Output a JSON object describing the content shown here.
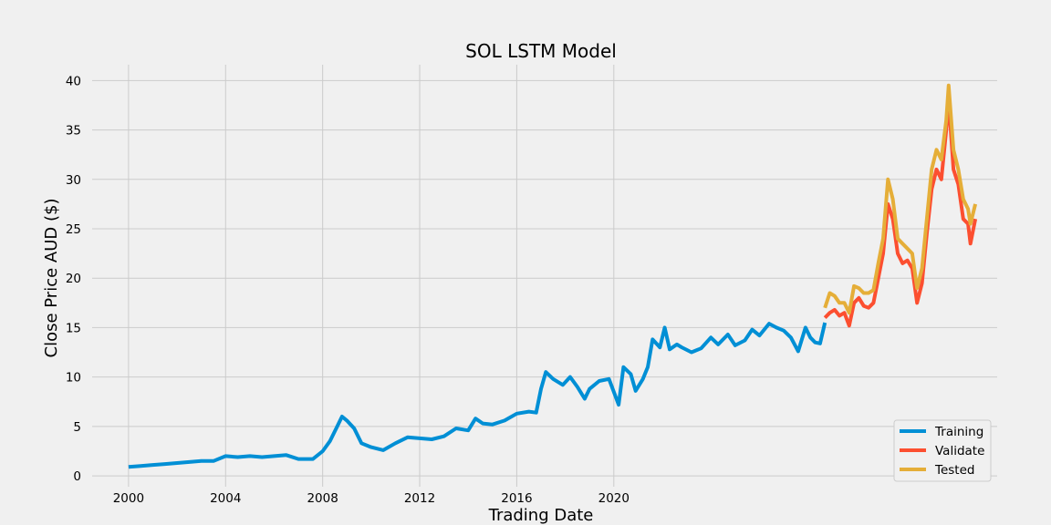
{
  "chart_data": {
    "type": "line",
    "title": "SOL LSTM Model",
    "xlabel": "Trading Date",
    "ylabel": "Close Price AUD ($)",
    "xlim": [
      1998.5,
      2035.8
    ],
    "ylim": [
      -1.1,
      41.6
    ],
    "x_ticks": [
      2000,
      2004,
      2008,
      2012,
      2016,
      2020
    ],
    "y_ticks": [
      0,
      5,
      10,
      15,
      20,
      25,
      30,
      35,
      40
    ],
    "grid": true,
    "legend_position": "bottom-right",
    "colors": {
      "Training": "#008fd5",
      "Validate": "#fc4f30",
      "Tested": "#e5ae38",
      "background": "#f0f0f0",
      "grid": "#cbcbcb"
    },
    "series": [
      {
        "name": "Training",
        "x": [
          2000.0,
          2000.5,
          2001.0,
          2001.5,
          2002.0,
          2002.5,
          2003.0,
          2003.5,
          2004.0,
          2004.5,
          2005.0,
          2005.5,
          2006.0,
          2006.5,
          2007.0,
          2007.3,
          2007.6,
          2008.0,
          2008.3,
          2008.6,
          2008.8,
          2009.0,
          2009.3,
          2009.6,
          2010.0,
          2010.5,
          2011.0,
          2011.5,
          2012.0,
          2012.5,
          2013.0,
          2013.5,
          2014.0,
          2014.3,
          2014.6,
          2015.0,
          2015.5,
          2016.0,
          2016.5,
          2016.8,
          2017.0,
          2017.2,
          2017.5,
          2017.9,
          2018.2,
          2018.5,
          2018.8,
          2019.0,
          2019.4,
          2019.8,
          2020.2,
          2020.4,
          2020.7,
          2020.9,
          2021.2,
          2021.4,
          2021.6,
          2021.9,
          2022.1,
          2022.3,
          2022.6,
          2022.8,
          2023.2,
          2023.6,
          2024.0,
          2024.3,
          2024.7,
          2025.0,
          2025.4,
          2025.7,
          2026.0,
          2026.4,
          2026.7,
          2027.0,
          2027.3,
          2027.6,
          2027.9,
          2028.1,
          2028.3,
          2028.5,
          2028.7
        ],
        "values": [
          0.9,
          1.0,
          1.1,
          1.2,
          1.3,
          1.4,
          1.5,
          1.5,
          2.0,
          1.9,
          2.0,
          1.9,
          2.0,
          2.1,
          1.7,
          1.7,
          1.7,
          2.5,
          3.5,
          5.0,
          6.0,
          5.6,
          4.8,
          3.3,
          2.9,
          2.6,
          3.3,
          3.9,
          3.8,
          3.7,
          4.0,
          4.8,
          4.6,
          5.8,
          5.3,
          5.2,
          5.6,
          6.3,
          6.5,
          6.4,
          8.8,
          10.5,
          9.8,
          9.2,
          10.0,
          9.0,
          7.8,
          8.8,
          9.6,
          9.8,
          7.2,
          11.0,
          10.3,
          8.6,
          9.8,
          11.0,
          13.8,
          13.0,
          15.0,
          12.8,
          13.3,
          13.0,
          12.5,
          12.9,
          14.0,
          13.3,
          14.3,
          13.2,
          13.7,
          14.8,
          14.2,
          15.4,
          15.0,
          14.7,
          14.0,
          12.6,
          15.0,
          14.0,
          13.5,
          13.4,
          15.5
        ]
      },
      {
        "name": "Validate",
        "x": [
          2028.7,
          2028.9,
          2029.1,
          2029.3,
          2029.5,
          2029.7,
          2029.9,
          2030.1,
          2030.3,
          2030.5,
          2030.7,
          2030.9,
          2031.1,
          2031.3,
          2031.5,
          2031.7,
          2031.9,
          2032.1,
          2032.3,
          2032.5,
          2032.7,
          2032.9,
          2033.1,
          2033.3,
          2033.5,
          2033.7,
          2033.8,
          2034.0,
          2034.2,
          2034.4,
          2034.6,
          2034.7,
          2034.9
        ],
        "values": [
          16.0,
          16.5,
          16.8,
          16.2,
          16.5,
          15.2,
          17.5,
          18.0,
          17.2,
          17.0,
          17.5,
          20.0,
          22.5,
          27.5,
          26.0,
          22.5,
          21.5,
          21.8,
          21.0,
          17.5,
          19.5,
          24.5,
          29.0,
          31.0,
          30.0,
          35.0,
          38.0,
          31.0,
          29.5,
          26.0,
          25.5,
          23.5,
          26.0
        ]
      },
      {
        "name": "Tested",
        "x": [
          2028.7,
          2028.9,
          2029.1,
          2029.3,
          2029.5,
          2029.7,
          2029.9,
          2030.1,
          2030.3,
          2030.5,
          2030.7,
          2030.9,
          2031.1,
          2031.3,
          2031.5,
          2031.7,
          2031.9,
          2032.1,
          2032.3,
          2032.5,
          2032.7,
          2032.9,
          2033.1,
          2033.3,
          2033.5,
          2033.7,
          2033.8,
          2034.0,
          2034.2,
          2034.4,
          2034.6,
          2034.7,
          2034.9
        ],
        "values": [
          17.0,
          18.5,
          18.2,
          17.5,
          17.5,
          16.5,
          19.2,
          19.0,
          18.5,
          18.5,
          18.8,
          21.5,
          24.0,
          30.0,
          28.0,
          24.0,
          23.5,
          23.0,
          22.5,
          19.0,
          21.0,
          26.0,
          31.0,
          33.0,
          32.0,
          36.0,
          39.5,
          33.0,
          31.0,
          28.0,
          27.0,
          25.5,
          27.5
        ]
      }
    ]
  }
}
